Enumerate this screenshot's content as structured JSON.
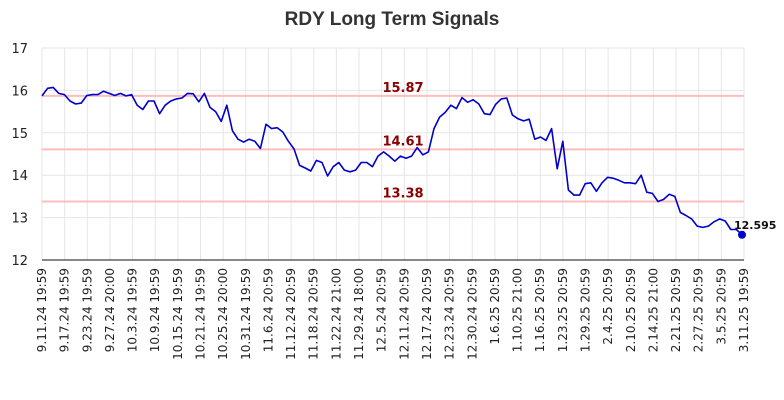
{
  "chart_data": {
    "type": "line",
    "title": "RDY Long Term Signals",
    "ylim": [
      12,
      17
    ],
    "yticks": [
      "12",
      "13",
      "14",
      "15",
      "16",
      "17"
    ],
    "xtick_labels": [
      "9.11.24 19:59",
      "9.17.24 19:59",
      "9.23.24 19:59",
      "9.27.24 20:00",
      "10.3.24 19:59",
      "10.9.24 19:59",
      "10.15.24 19:59",
      "10.21.24 19:59",
      "10.25.24 20:00",
      "10.31.24 19:59",
      "11.6.24 20:59",
      "11.12.24 20:59",
      "11.18.24 20:59",
      "11.22.24 21:00",
      "11.29.24 18:00",
      "12.5.24 20:59",
      "12.11.24 20:59",
      "12.17.24 20:59",
      "12.23.24 20:59",
      "12.30.24 20:59",
      "1.6.25 20:59",
      "1.10.25 21:00",
      "1.16.25 20:59",
      "1.23.25 20:59",
      "1.29.25 20:59",
      "2.4.25 20:59",
      "2.10.25 20:59",
      "2.14.25 21:00",
      "2.21.25 20:59",
      "2.27.25 20:59",
      "3.5.25 20:59",
      "3.11.25 19:59"
    ],
    "grid": true,
    "series": [
      {
        "color": "#0000cc",
        "values": [
          15.87,
          16.05,
          16.07,
          15.93,
          15.9,
          15.75,
          15.68,
          15.7,
          15.88,
          15.9,
          15.9,
          15.98,
          15.93,
          15.88,
          15.93,
          15.87,
          15.9,
          15.65,
          15.55,
          15.75,
          15.75,
          15.45,
          15.65,
          15.75,
          15.8,
          15.82,
          15.93,
          15.92,
          15.73,
          15.93,
          15.6,
          15.5,
          15.27,
          15.65,
          15.05,
          14.85,
          14.78,
          14.85,
          14.8,
          14.63,
          15.2,
          15.1,
          15.12,
          15.02,
          14.8,
          14.62,
          14.23,
          14.17,
          14.1,
          14.35,
          14.3,
          13.98,
          14.2,
          14.3,
          14.12,
          14.08,
          14.12,
          14.3,
          14.3,
          14.2,
          14.45,
          14.55,
          14.45,
          14.33,
          14.45,
          14.4,
          14.45,
          14.65,
          14.48,
          14.55,
          15.1,
          15.37,
          15.48,
          15.65,
          15.57,
          15.83,
          15.72,
          15.78,
          15.68,
          15.45,
          15.43,
          15.67,
          15.8,
          15.82,
          15.42,
          15.33,
          15.28,
          15.32,
          14.85,
          14.9,
          14.82,
          15.1,
          14.15,
          14.8,
          13.65,
          13.53,
          13.53,
          13.8,
          13.82,
          13.62,
          13.82,
          13.95,
          13.93,
          13.88,
          13.82,
          13.82,
          13.8,
          14.0,
          13.6,
          13.57,
          13.38,
          13.43,
          13.55,
          13.5,
          13.12,
          13.05,
          12.97,
          12.8,
          12.77,
          12.8,
          12.9,
          12.97,
          12.92,
          12.72,
          12.72,
          12.595
        ]
      }
    ],
    "levels": [
      {
        "value": 15.87,
        "label": "15.87"
      },
      {
        "value": 14.61,
        "label": "14.61"
      },
      {
        "value": 13.38,
        "label": "13.38"
      }
    ],
    "last_value_label": "12.595",
    "level_color": "#ffbcbc",
    "level_label_color": "#8b0000",
    "line_color": "#0000cc"
  }
}
